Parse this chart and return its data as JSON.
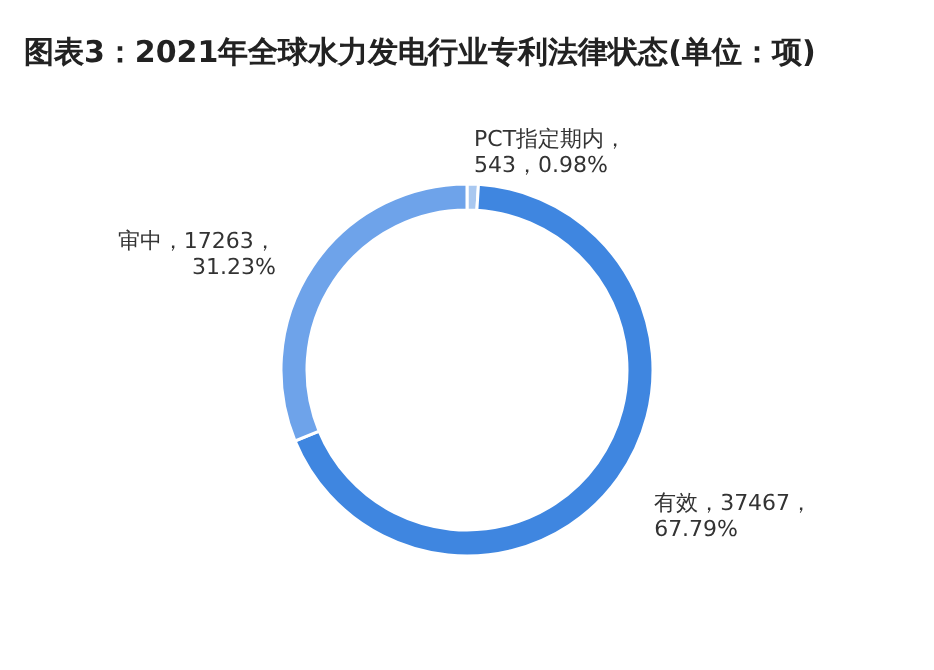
{
  "chart_data": {
    "type": "donut",
    "title": "图表3：2021年全球水力发电行业专利法律状态(单位：项)",
    "categories": [
      "PCT指定期内",
      "有效",
      "审中"
    ],
    "values": [
      543,
      37467,
      17263
    ],
    "colors": [
      "#a9c8f0",
      "#3f86e0",
      "#6ea3ea"
    ],
    "value_labels": [
      "，\n543，0.98%",
      "，37467，\n67.79%",
      "，17263，\n31.23%"
    ]
  }
}
